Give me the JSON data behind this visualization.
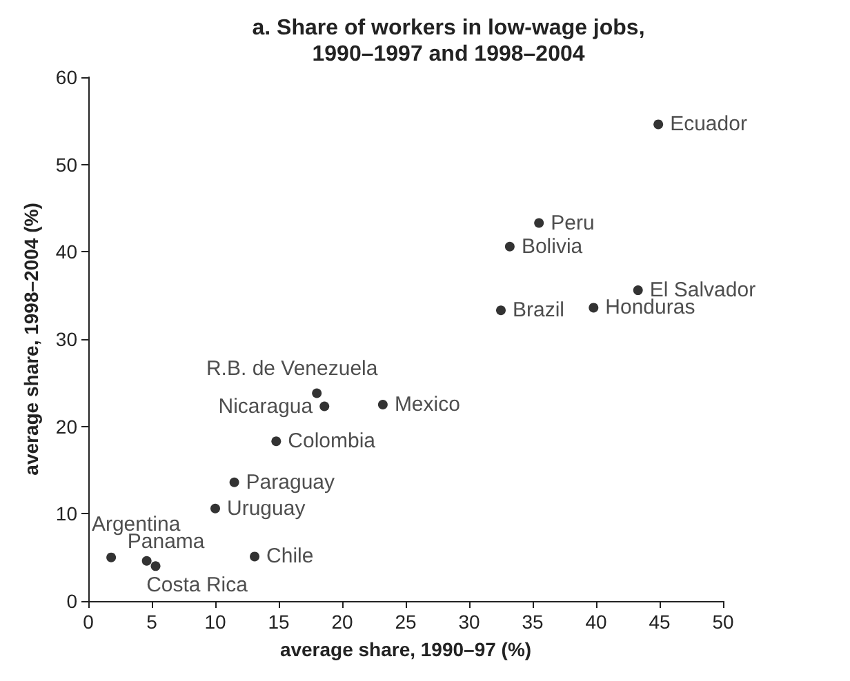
{
  "chart_data": {
    "type": "scatter",
    "title": "a. Share of workers in low-wage jobs,\n1990–1997 and 1998–2004",
    "xlabel": "average share, 1990–97 (%)",
    "ylabel": "average share, 1998–2004 (%)",
    "x": [
      44.9,
      35.5,
      33.2,
      43.3,
      32.5,
      39.8,
      18.0,
      18.6,
      23.2,
      14.8,
      11.5,
      10.0,
      1.8,
      4.6,
      5.3,
      13.1
    ],
    "series": [
      {
        "color": "#000000",
        "values": [
          54.6,
          43.3,
          40.6,
          35.6,
          33.3,
          33.6,
          23.8,
          22.3,
          22.5,
          18.3,
          13.6,
          10.6,
          5.0,
          4.6,
          4.0,
          5.1
        ]
      }
    ],
    "value_labels": [
      "Ecuador",
      "Peru",
      "Bolivia",
      "El Salvador",
      "Brazil",
      "Honduras",
      "R.B. de Venezuela",
      "Nicaragua",
      "Mexico",
      "Colombia",
      "Paraguay",
      "Uruguay",
      "Argentina",
      "Panama",
      "Costa Rica",
      "Chile"
    ],
    "xlim": [
      0,
      50
    ],
    "xticks": [
      0,
      5,
      10,
      15,
      20,
      25,
      30,
      35,
      40,
      45,
      50
    ],
    "ylim": [
      0,
      60
    ],
    "yticks": [
      0,
      10,
      20,
      30,
      40,
      50,
      60
    ],
    "grid": false,
    "marker": "circle"
  }
}
